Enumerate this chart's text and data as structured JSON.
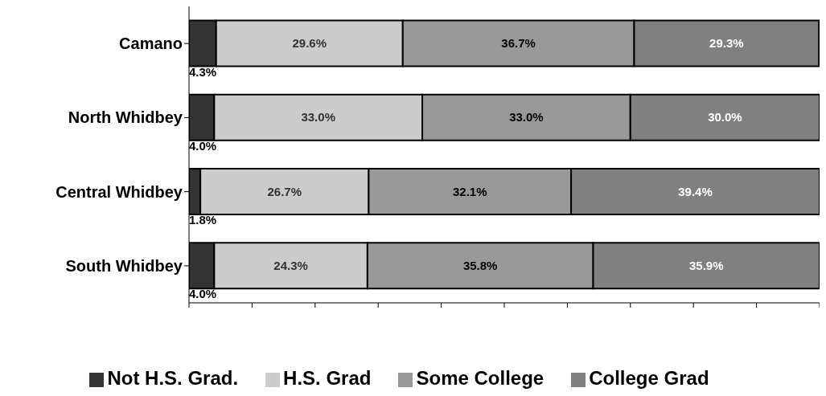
{
  "chart_data": {
    "type": "bar",
    "orientation": "horizontal",
    "stacked": true,
    "categories": [
      "Camano",
      "North Whidbey",
      "Central Whidbey",
      "South Whidbey"
    ],
    "series": [
      {
        "name": "Not H.S. Grad.",
        "color": "#333333",
        "values": [
          4.3,
          4.0,
          1.8,
          4.0
        ],
        "value_labels": [
          "4.3%",
          "4.0%",
          "1.8%",
          "4.0%"
        ]
      },
      {
        "name": "H.S. Grad",
        "color": "#cccccc",
        "values": [
          29.6,
          33.0,
          26.7,
          24.3
        ],
        "value_labels": [
          "29.6%",
          "33.0%",
          "26.7%",
          "24.3%"
        ]
      },
      {
        "name": "Some College",
        "color": "#999999",
        "values": [
          36.7,
          33.0,
          32.1,
          35.8
        ],
        "value_labels": [
          "36.7%",
          "33.0%",
          "32.1%",
          "35.8%"
        ]
      },
      {
        "name": "College Grad",
        "color": "#808080",
        "values": [
          29.3,
          30.0,
          39.4,
          35.9
        ],
        "value_labels": [
          "29.3%",
          "30.0%",
          "39.4%",
          "35.9%"
        ]
      }
    ],
    "xlim": [
      0,
      100
    ],
    "xticks": [
      {
        "value": 0,
        "label": null
      },
      {
        "value": 10,
        "label": null
      },
      {
        "value": 20,
        "label": null
      },
      {
        "value": 30,
        "label": null
      },
      {
        "value": 40,
        "label": null
      },
      {
        "value": 50,
        "label": null
      },
      {
        "value": 60,
        "label": null
      },
      {
        "value": 70,
        "label": null
      },
      {
        "value": 80,
        "label": null
      },
      {
        "value": 90,
        "label": null
      },
      {
        "value": 100,
        "label": null
      }
    ],
    "tick_labels": "y",
    "grid": false,
    "legend": "bottom"
  }
}
